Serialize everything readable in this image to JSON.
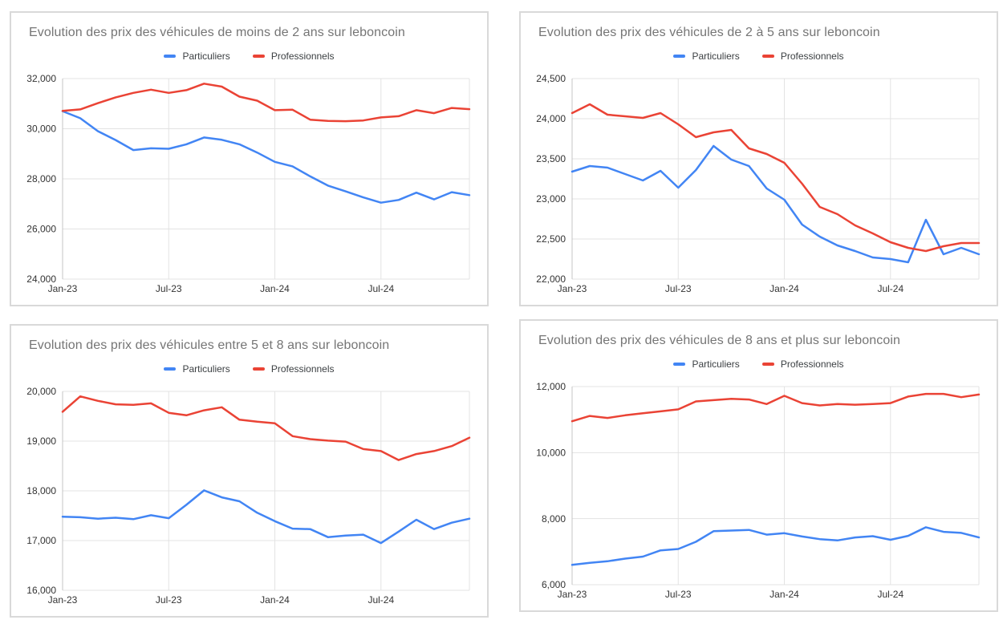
{
  "chart_data": [
    {
      "type": "line",
      "title": "Evolution des prix des véhicules de moins de 2 ans sur leboncoin",
      "legend_position": "top",
      "grid": true,
      "xlabel": "",
      "ylabel": "",
      "ylim": [
        24000,
        32000
      ],
      "y_tick_labels": [
        "24,000",
        "26,000",
        "28,000",
        "30,000",
        "32,000"
      ],
      "x_tick_labels": [
        "Jan-23",
        "Jul-23",
        "Jan-24",
        "Jul-24"
      ],
      "categories": [
        "Jan-23",
        "Feb-23",
        "Mar-23",
        "Apr-23",
        "May-23",
        "Jun-23",
        "Jul-23",
        "Aug-23",
        "Sep-23",
        "Oct-23",
        "Nov-23",
        "Dec-23",
        "Jan-24",
        "Feb-24",
        "Mar-24",
        "Apr-24",
        "May-24",
        "Jun-24",
        "Jul-24",
        "Aug-24",
        "Sep-24",
        "Oct-24",
        "Nov-24",
        "Dec-24"
      ],
      "series": [
        {
          "name": "Particuliers",
          "color": "#4285F4",
          "values": [
            30700,
            30420,
            29900,
            29550,
            29150,
            29220,
            29200,
            29380,
            29650,
            29560,
            29380,
            29050,
            28680,
            28500,
            28100,
            27730,
            27500,
            27260,
            27050,
            27160,
            27450,
            27180,
            27470,
            27350
          ]
        },
        {
          "name": "Professionnels",
          "color": "#EA4335",
          "values": [
            30710,
            30770,
            31020,
            31250,
            31430,
            31560,
            31430,
            31540,
            31800,
            31680,
            31280,
            31120,
            30740,
            30760,
            30360,
            30310,
            30300,
            30330,
            30450,
            30500,
            30740,
            30620,
            30830,
            30780
          ]
        }
      ]
    },
    {
      "type": "line",
      "title": "Evolution des prix des véhicules de 2 à 5 ans sur leboncoin",
      "legend_position": "top",
      "grid": true,
      "xlabel": "",
      "ylabel": "",
      "ylim": [
        22000,
        24500
      ],
      "y_tick_labels": [
        "22,000",
        "22,500",
        "23,000",
        "23,500",
        "24,000",
        "24,500"
      ],
      "x_tick_labels": [
        "Jan-23",
        "Jul-23",
        "Jan-24",
        "Jul-24"
      ],
      "categories": [
        "Jan-23",
        "Feb-23",
        "Mar-23",
        "Apr-23",
        "May-23",
        "Jun-23",
        "Jul-23",
        "Aug-23",
        "Sep-23",
        "Oct-23",
        "Nov-23",
        "Dec-23",
        "Jan-24",
        "Feb-24",
        "Mar-24",
        "Apr-24",
        "May-24",
        "Jun-24",
        "Jul-24",
        "Aug-24",
        "Sep-24",
        "Oct-24",
        "Nov-24",
        "Dec-24"
      ],
      "series": [
        {
          "name": "Particuliers",
          "color": "#4285F4",
          "values": [
            23340,
            23410,
            23390,
            23310,
            23230,
            23350,
            23140,
            23360,
            23660,
            23490,
            23410,
            23130,
            22990,
            22680,
            22530,
            22420,
            22350,
            22270,
            22250,
            22210,
            22740,
            22310,
            22390,
            22310
          ]
        },
        {
          "name": "Professionnels",
          "color": "#EA4335",
          "values": [
            24070,
            24180,
            24050,
            24030,
            24010,
            24070,
            23930,
            23770,
            23830,
            23860,
            23630,
            23560,
            23450,
            23190,
            22900,
            22810,
            22670,
            22570,
            22460,
            22390,
            22350,
            22410,
            22450,
            22450
          ]
        }
      ]
    },
    {
      "type": "line",
      "title": "Evolution des prix des véhicules entre 5 et 8 ans sur leboncoin",
      "legend_position": "top",
      "grid": true,
      "xlabel": "",
      "ylabel": "",
      "ylim": [
        16000,
        20000
      ],
      "y_tick_labels": [
        "16,000",
        "17,000",
        "18,000",
        "19,000",
        "20,000"
      ],
      "x_tick_labels": [
        "Jan-23",
        "Jul-23",
        "Jan-24",
        "Jul-24"
      ],
      "categories": [
        "Jan-23",
        "Feb-23",
        "Mar-23",
        "Apr-23",
        "May-23",
        "Jun-23",
        "Jul-23",
        "Aug-23",
        "Sep-23",
        "Oct-23",
        "Nov-23",
        "Dec-23",
        "Jan-24",
        "Feb-24",
        "Mar-24",
        "Apr-24",
        "May-24",
        "Jun-24",
        "Jul-24",
        "Aug-24",
        "Sep-24",
        "Oct-24",
        "Nov-24",
        "Dec-24"
      ],
      "series": [
        {
          "name": "Particuliers",
          "color": "#4285F4",
          "values": [
            17480,
            17470,
            17440,
            17460,
            17430,
            17510,
            17450,
            17720,
            18010,
            17870,
            17790,
            17560,
            17390,
            17240,
            17230,
            17070,
            17100,
            17120,
            16950,
            17180,
            17420,
            17230,
            17360,
            17440
          ]
        },
        {
          "name": "Professionnels",
          "color": "#EA4335",
          "values": [
            19590,
            19900,
            19810,
            19740,
            19730,
            19760,
            19570,
            19520,
            19620,
            19680,
            19430,
            19390,
            19360,
            19100,
            19040,
            19010,
            18990,
            18840,
            18800,
            18620,
            18740,
            18800,
            18900,
            19070
          ]
        }
      ]
    },
    {
      "type": "line",
      "title": "Evolution des prix des véhicules de 8 ans et plus sur leboncoin",
      "legend_position": "top",
      "grid": true,
      "xlabel": "",
      "ylabel": "",
      "ylim": [
        6000,
        12000
      ],
      "y_tick_labels": [
        "6,000",
        "8,000",
        "10,000",
        "12,000"
      ],
      "x_tick_labels": [
        "Jan-23",
        "Jul-23",
        "Jan-24",
        "Jul-24"
      ],
      "categories": [
        "Jan-23",
        "Feb-23",
        "Mar-23",
        "Apr-23",
        "May-23",
        "Jun-23",
        "Jul-23",
        "Aug-23",
        "Sep-23",
        "Oct-23",
        "Nov-23",
        "Dec-23",
        "Jan-24",
        "Feb-24",
        "Mar-24",
        "Apr-24",
        "May-24",
        "Jun-24",
        "Jul-24",
        "Aug-24",
        "Sep-24",
        "Oct-24",
        "Nov-24",
        "Dec-24"
      ],
      "series": [
        {
          "name": "Particuliers",
          "color": "#4285F4",
          "values": [
            6600,
            6660,
            6710,
            6790,
            6850,
            7040,
            7080,
            7300,
            7620,
            7640,
            7660,
            7515,
            7560,
            7460,
            7380,
            7340,
            7430,
            7470,
            7360,
            7480,
            7740,
            7600,
            7570,
            7430
          ]
        },
        {
          "name": "Professionnels",
          "color": "#EA4335",
          "values": [
            10950,
            11110,
            11050,
            11130,
            11190,
            11250,
            11310,
            11550,
            11590,
            11630,
            11610,
            11470,
            11720,
            11500,
            11430,
            11470,
            11450,
            11470,
            11500,
            11700,
            11780,
            11780,
            11680,
            11760
          ]
        }
      ]
    }
  ],
  "style": {
    "grid_color": "#e3e3e3",
    "axis_color": "#c4c4c4",
    "tick_label_color": "#333333",
    "title_color": "#757575"
  }
}
